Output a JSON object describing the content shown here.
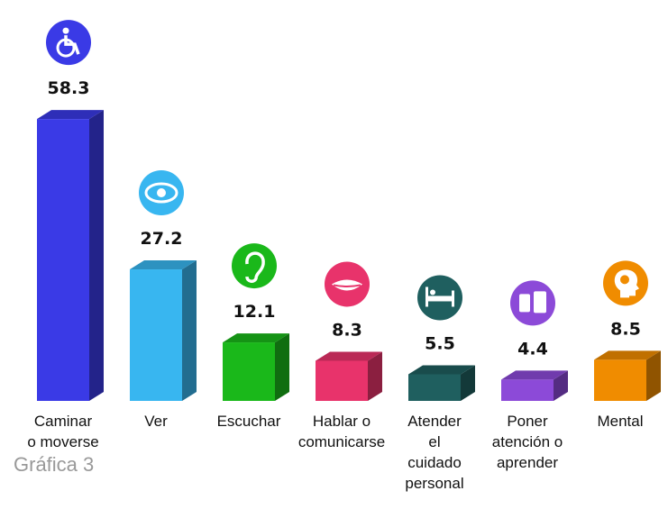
{
  "chart_data": {
    "type": "bar3d",
    "categories": [
      "Caminar\no moverse",
      "Ver",
      "Escuchar",
      "Hablar o\ncomunicarse",
      "Atender\nel\ncuidado\npersonal",
      "Poner\natención o\naprender",
      "Mental"
    ],
    "values": [
      58.3,
      27.2,
      12.1,
      8.3,
      5.5,
      4.4,
      8.5
    ],
    "colors": [
      "#3a3ae6",
      "#38b6f0",
      "#1ab81a",
      "#e8336b",
      "#1f5f5f",
      "#8c4ad8",
      "#f08c00"
    ],
    "ylim": [
      0,
      60
    ],
    "caption": "Gráfica 3"
  }
}
